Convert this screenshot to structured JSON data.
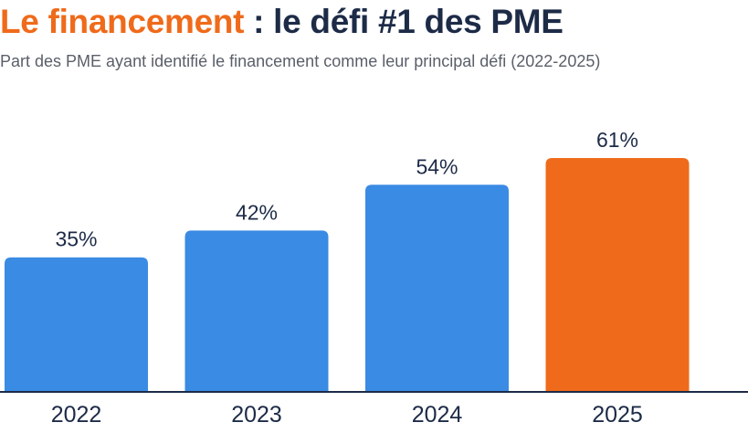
{
  "header": {
    "title_accent": "Le financement",
    "title_rest": " : le défi #1 des PME",
    "subtitle": "Part des PME ayant identifié le financement comme leur principal défi (2022-2025)"
  },
  "chart_data": {
    "type": "bar",
    "title": "Le financement : le défi #1 des PME",
    "subtitle": "Part des PME ayant identifié le financement comme leur principal défi (2022-2025)",
    "categories": [
      "2022",
      "2023",
      "2024",
      "2025"
    ],
    "values": [
      35,
      42,
      54,
      61
    ],
    "value_labels": [
      "35%",
      "42%",
      "54%",
      "61%"
    ],
    "unit": "%",
    "xlabel": "",
    "ylabel": "",
    "ylim": [
      0,
      100
    ],
    "grid": false,
    "legend": "none",
    "colors": [
      "#3a8be3",
      "#3a8be3",
      "#3a8be3",
      "#ef6a1a"
    ],
    "axis_color": "#1d2b47"
  }
}
